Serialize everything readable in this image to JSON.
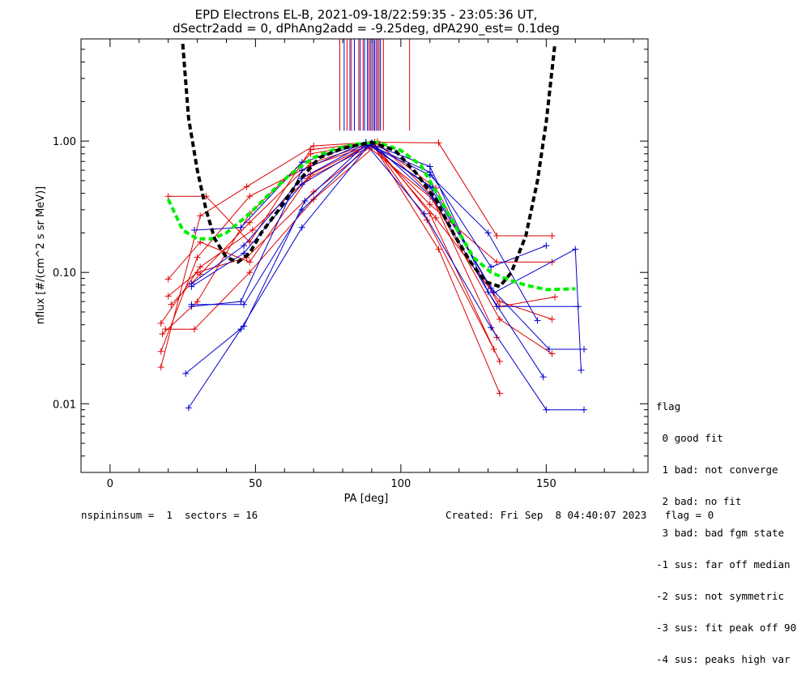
{
  "chart_data": {
    "type": "scatter",
    "title_line1": "EPD Electrons EL-B, 2021-09-18/22:59:35 - 23:05:36 UT,",
    "title_line2": "dSectr2add = 0, dPhAng2add = -9.25deg, dPA290_est=   0.1deg",
    "xlabel": "PA [deg]",
    "ylabel": "nflux [#/(cm^2 s sr MeV)]",
    "xlim": [
      -10,
      185
    ],
    "ylim": [
      0.003,
      6
    ],
    "yscale": "log",
    "x_ticks": [
      0,
      50,
      100,
      150
    ],
    "y_ticks": [
      {
        "value": 1.0,
        "label": "1.00"
      },
      {
        "value": 0.1,
        "label": "0.10"
      },
      {
        "value": 0.01,
        "label": "0.01"
      }
    ],
    "colors": {
      "red": "#dd0000",
      "blue": "#0000cc",
      "green": "#00ee00",
      "black": "#000000"
    },
    "blue_lines_x": [
      80.5,
      82.5,
      84,
      86,
      87.5,
      88.5,
      89.5,
      90.5,
      91,
      92,
      93
    ],
    "red_lines_x": [
      79,
      81.5,
      83,
      85.5,
      87,
      89,
      90,
      91.5,
      92.5,
      94,
      103
    ],
    "series": [
      {
        "color": "red",
        "points": [
          [
            17.5,
            0.019
          ],
          [
            31,
            0.27
          ],
          [
            47,
            0.45
          ],
          [
            70,
            0.92
          ],
          [
            91,
            0.98
          ],
          [
            112,
            0.44
          ],
          [
            134,
            0.055
          ],
          [
            153,
            0.065
          ]
        ]
      },
      {
        "color": "red",
        "points": [
          [
            18,
            0.034
          ],
          [
            30,
            0.06
          ],
          [
            48,
            0.28
          ],
          [
            69,
            0.8
          ],
          [
            90,
            0.97
          ],
          [
            113,
            0.15
          ],
          [
            134,
            0.012
          ]
        ]
      },
      {
        "color": "red",
        "points": [
          [
            17.5,
            0.025
          ],
          [
            30,
            0.13
          ],
          [
            48,
            0.38
          ],
          [
            69,
            0.65
          ],
          [
            91,
            0.95
          ],
          [
            110,
            0.28
          ],
          [
            134,
            0.021
          ]
        ]
      },
      {
        "color": "red",
        "points": [
          [
            17.5,
            0.041
          ],
          [
            31,
            0.11
          ],
          [
            49,
            0.21
          ],
          [
            68,
            0.52
          ],
          [
            89,
            0.9
          ],
          [
            111,
            0.36
          ],
          [
            133,
            0.032
          ]
        ]
      },
      {
        "color": "red",
        "points": [
          [
            20,
            0.38
          ],
          [
            33,
            0.38
          ],
          [
            48,
            0.17
          ],
          [
            69,
            0.86
          ],
          [
            91,
            0.98
          ],
          [
            113,
            0.97
          ],
          [
            133,
            0.19
          ],
          [
            152,
            0.19
          ]
        ]
      },
      {
        "color": "red",
        "points": [
          [
            20,
            0.066
          ],
          [
            30,
            0.1
          ],
          [
            47,
            0.13
          ],
          [
            70,
            0.41
          ],
          [
            90,
            0.93
          ],
          [
            110,
            0.33
          ],
          [
            133,
            0.12
          ],
          [
            152,
            0.12
          ]
        ]
      },
      {
        "color": "red",
        "points": [
          [
            20,
            0.089
          ],
          [
            31,
            0.17
          ],
          [
            48,
            0.12
          ],
          [
            69,
            0.56
          ],
          [
            90,
            0.96
          ],
          [
            112,
            0.26
          ],
          [
            134,
            0.06
          ],
          [
            152,
            0.044
          ]
        ]
      },
      {
        "color": "red",
        "points": [
          [
            21,
            0.057
          ],
          [
            31,
            0.097
          ],
          [
            48,
            0.24
          ],
          [
            69,
            0.68
          ],
          [
            92,
            0.99
          ],
          [
            110,
            0.4
          ],
          [
            134,
            0.044
          ],
          [
            152,
            0.024
          ]
        ]
      },
      {
        "color": "red",
        "points": [
          [
            19,
            0.037
          ],
          [
            29,
            0.037
          ],
          [
            48,
            0.1
          ],
          [
            70,
            0.36
          ],
          [
            91,
            0.91
          ],
          [
            109,
            0.25
          ],
          [
            132,
            0.026
          ]
        ]
      },
      {
        "color": "blue",
        "points": [
          [
            27,
            0.0093
          ],
          [
            45,
            0.037
          ],
          [
            66,
            0.22
          ],
          [
            89,
            0.93
          ],
          [
            110,
            0.55
          ],
          [
            130,
            0.2
          ],
          [
            147,
            0.043
          ]
        ]
      },
      {
        "color": "blue",
        "points": [
          [
            26,
            0.017
          ],
          [
            46,
            0.039
          ],
          [
            67,
            0.35
          ],
          [
            88,
            0.95
          ],
          [
            108,
            0.28
          ],
          [
            131,
            0.038
          ],
          [
            150,
            0.009
          ],
          [
            163,
            0.009
          ]
        ]
      },
      {
        "color": "blue",
        "points": [
          [
            28,
            0.055
          ],
          [
            45,
            0.06
          ],
          [
            66,
            0.6
          ],
          [
            88,
            0.98
          ],
          [
            110,
            0.64
          ],
          [
            130,
            0.071
          ],
          [
            149,
            0.016
          ]
        ]
      },
      {
        "color": "blue",
        "points": [
          [
            28,
            0.082
          ],
          [
            46,
            0.16
          ],
          [
            66,
            0.52
          ],
          [
            88,
            0.96
          ],
          [
            110,
            0.58
          ],
          [
            131,
            0.11
          ],
          [
            150,
            0.16
          ]
        ]
      },
      {
        "color": "blue",
        "points": [
          [
            28,
            0.057
          ],
          [
            46,
            0.057
          ],
          [
            66,
            0.3
          ],
          [
            89,
            0.94
          ],
          [
            111,
            0.44
          ],
          [
            131,
            0.076
          ],
          [
            151,
            0.026
          ],
          [
            163,
            0.026
          ]
        ]
      },
      {
        "color": "blue",
        "points": [
          [
            29,
            0.21
          ],
          [
            45,
            0.22
          ],
          [
            66,
            0.69
          ],
          [
            88,
            0.97
          ],
          [
            110,
            0.45
          ],
          [
            132,
            0.07
          ],
          [
            160,
            0.15
          ],
          [
            162,
            0.018
          ]
        ]
      },
      {
        "color": "blue",
        "points": [
          [
            28,
            0.078
          ],
          [
            46,
            0.14
          ],
          [
            66,
            0.47
          ],
          [
            90,
            0.97
          ],
          [
            111,
            0.37
          ],
          [
            133,
            0.055
          ],
          [
            161,
            0.055
          ]
        ]
      }
    ],
    "fit_black": [
      [
        25,
        5.5
      ],
      [
        27,
        1.5
      ],
      [
        30,
        0.6
      ],
      [
        33,
        0.3
      ],
      [
        36,
        0.18
      ],
      [
        40,
        0.13
      ],
      [
        44,
        0.12
      ],
      [
        48,
        0.14
      ],
      [
        52,
        0.2
      ],
      [
        58,
        0.3
      ],
      [
        65,
        0.5
      ],
      [
        72,
        0.75
      ],
      [
        80,
        0.88
      ],
      [
        90,
        0.98
      ],
      [
        98,
        0.85
      ],
      [
        105,
        0.58
      ],
      [
        112,
        0.36
      ],
      [
        118,
        0.2
      ],
      [
        124,
        0.12
      ],
      [
        129,
        0.085
      ],
      [
        134,
        0.078
      ],
      [
        138,
        0.1
      ],
      [
        143,
        0.19
      ],
      [
        147,
        0.5
      ],
      [
        150,
        1.4
      ],
      [
        153,
        5.5
      ]
    ],
    "fit_green": [
      [
        20,
        0.36
      ],
      [
        25,
        0.21
      ],
      [
        30,
        0.18
      ],
      [
        35,
        0.18
      ],
      [
        40,
        0.2
      ],
      [
        48,
        0.28
      ],
      [
        55,
        0.4
      ],
      [
        62,
        0.56
      ],
      [
        70,
        0.75
      ],
      [
        78,
        0.88
      ],
      [
        85,
        0.95
      ],
      [
        92,
        0.98
      ],
      [
        100,
        0.85
      ],
      [
        107,
        0.65
      ],
      [
        113,
        0.38
      ],
      [
        119,
        0.22
      ],
      [
        125,
        0.13
      ],
      [
        131,
        0.1
      ],
      [
        137,
        0.088
      ],
      [
        143,
        0.08
      ],
      [
        150,
        0.074
      ],
      [
        160,
        0.075
      ]
    ]
  },
  "legend": {
    "title": "flag",
    "items": [
      " 0 good fit",
      " 1 bad: not converge",
      " 2 bad: no fit",
      " 3 bad: bad fgm state",
      "-1 sus: far off median",
      "-2 sus: not symmetric",
      "-3 sus: fit peak off 90",
      "-4 sus: peaks high var"
    ]
  },
  "footer": {
    "left": "nspininsum =  1  sectors = 16",
    "right": "Created: Fri Sep  8 04:40:07 2023   flag = 0"
  }
}
